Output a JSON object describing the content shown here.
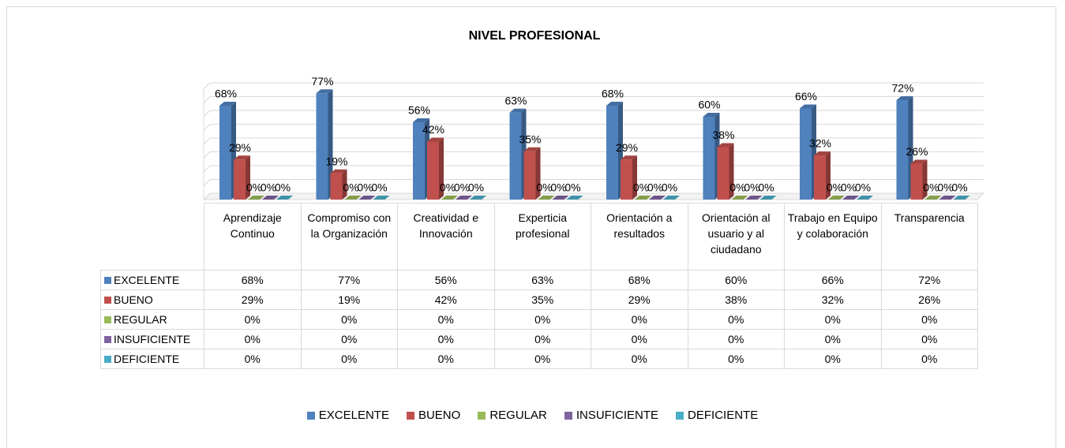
{
  "chart_data": {
    "type": "bar3d",
    "title": "NIVEL PROFESIONAL",
    "categories": [
      "Aprendizaje Continuo",
      "Compromiso con la Organización",
      "Creatividad e Innovación",
      "Experticia profesional",
      "Orientación a resultados",
      "Orientación al usuario y al ciudadano",
      "Trabajo en Equipo y colaboración",
      "Transparencia"
    ],
    "series": [
      {
        "name": "EXCELENTE",
        "color": "#4f81bd",
        "values": [
          68,
          77,
          56,
          63,
          68,
          60,
          66,
          72
        ],
        "value_labels": [
          "68%",
          "77%",
          "56%",
          "63%",
          "68%",
          "60%",
          "66%",
          "72%"
        ]
      },
      {
        "name": "BUENO",
        "color": "#c0504d",
        "values": [
          29,
          19,
          42,
          35,
          29,
          38,
          32,
          26
        ],
        "value_labels": [
          "29%",
          "19%",
          "42%",
          "35%",
          "29%",
          "38%",
          "32%",
          "26%"
        ]
      },
      {
        "name": "REGULAR",
        "color": "#9bbb59",
        "values": [
          0,
          0,
          0,
          0,
          0,
          0,
          0,
          0
        ],
        "value_labels": [
          "0%",
          "0%",
          "0%",
          "0%",
          "0%",
          "0%",
          "0%",
          "0%"
        ]
      },
      {
        "name": "INSUFICIENTE",
        "color": "#8064a2",
        "values": [
          0,
          0,
          0,
          0,
          0,
          0,
          0,
          0
        ],
        "value_labels": [
          "0%",
          "0%",
          "0%",
          "0%",
          "0%",
          "0%",
          "0%",
          "0%"
        ]
      },
      {
        "name": "DEFICIENTE",
        "color": "#4bacc6",
        "values": [
          0,
          0,
          0,
          0,
          0,
          0,
          0,
          0
        ],
        "value_labels": [
          "0%",
          "0%",
          "0%",
          "0%",
          "0%",
          "0%",
          "0%",
          "0%"
        ]
      }
    ],
    "ylim": [
      0,
      80
    ],
    "yticks": [
      0,
      10,
      20,
      30,
      40,
      50,
      60,
      70,
      80
    ],
    "grid": true,
    "data_table": true,
    "legend": "bottom"
  }
}
